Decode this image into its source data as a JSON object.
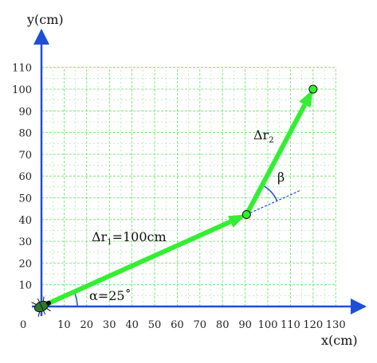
{
  "axes": {
    "x_title": "x(cm)",
    "y_title": "y(cm)",
    "origin_label": "0",
    "x_ticks": [
      "10",
      "20",
      "30",
      "40",
      "50",
      "60",
      "70",
      "80",
      "90",
      "100",
      "110",
      "120",
      "130"
    ],
    "y_ticks": [
      "10",
      "20",
      "30",
      "40",
      "50",
      "60",
      "70",
      "80",
      "90",
      "100",
      "110"
    ],
    "x_tick_values": [
      10,
      20,
      30,
      40,
      50,
      60,
      70,
      80,
      90,
      100,
      110,
      120,
      130
    ],
    "y_tick_values": [
      10,
      20,
      30,
      40,
      50,
      60,
      70,
      80,
      90,
      100,
      110
    ],
    "grid": true
  },
  "points": {
    "start": {
      "x": 0,
      "y": 0
    },
    "p1": {
      "x": 90.6,
      "y": 42.3
    },
    "p2": {
      "x": 120,
      "y": 100
    }
  },
  "vectors": {
    "dr1": {
      "symbol": "Δr",
      "subscript": "1",
      "value_text": "=100cm"
    },
    "dr2": {
      "symbol": "Δr",
      "subscript": "2"
    }
  },
  "angles": {
    "alpha": {
      "text": "α=25˚"
    },
    "beta": {
      "text": "β"
    }
  },
  "colors": {
    "vector": "#33ee33",
    "axis": "#1f4fd6",
    "grid": "#66dd66",
    "point_fill": "#33ee33"
  },
  "icons": {
    "origin_marker": "beetle-icon"
  }
}
